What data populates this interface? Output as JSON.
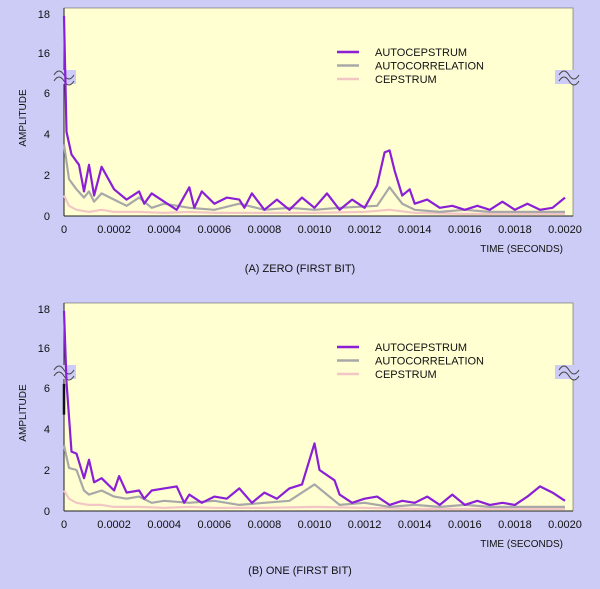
{
  "colors": {
    "background": "#ccccf6",
    "plot_fill": "#ffffd2",
    "autocepstrum": "#8a1fd6",
    "autocorrelation": "#a8a8a8",
    "cepstrum": "#f3c6c6",
    "marker": "#111111"
  },
  "chart_data": [
    {
      "type": "line",
      "caption": "(A) ZERO (FIRST BIT)",
      "xlabel": "TIME (SECONDS)",
      "ylabel": "AMPLITUDE",
      "xlim": [
        0,
        0.002
      ],
      "ylim": [
        0,
        18
      ],
      "broken_axis": true,
      "grid": false,
      "legend_position": "top-right",
      "x_ticks": [
        "0",
        "0.0002",
        "0.0004",
        "0.0006",
        "0.0008",
        "0.0010",
        "0.0012",
        "0.0014",
        "0.0016",
        "0.0018",
        "0.0020"
      ],
      "y_ticks": [
        "0",
        "2",
        "4",
        "6",
        "16",
        "18"
      ],
      "series": [
        {
          "name": "AUTOCEPSTRUM",
          "color_key": "autocepstrum",
          "x": [
            0,
            1e-05,
            3e-05,
            6e-05,
            8e-05,
            0.0001,
            0.00012,
            0.00015,
            0.0002,
            0.00025,
            0.0003,
            0.00032,
            0.00035,
            0.0004,
            0.00045,
            0.0005,
            0.00052,
            0.00055,
            0.0006,
            0.00065,
            0.0007,
            0.00072,
            0.00075,
            0.0008,
            0.00085,
            0.0009,
            0.00095,
            0.001,
            0.00105,
            0.0011,
            0.00115,
            0.0012,
            0.00125,
            0.00128,
            0.0013,
            0.00132,
            0.00135,
            0.00138,
            0.0014,
            0.00145,
            0.0015,
            0.00155,
            0.0016,
            0.00165,
            0.0017,
            0.00175,
            0.0018,
            0.00185,
            0.0019,
            0.00195,
            0.002
          ],
          "y": [
            17.7,
            4.1,
            3.0,
            2.5,
            1.2,
            2.5,
            1.0,
            2.4,
            1.3,
            0.8,
            1.2,
            0.6,
            1.1,
            0.7,
            0.3,
            1.4,
            0.4,
            1.2,
            0.6,
            0.9,
            0.8,
            0.4,
            1.1,
            0.3,
            0.8,
            0.3,
            0.9,
            0.4,
            1.1,
            0.3,
            0.8,
            0.4,
            1.5,
            3.1,
            3.2,
            2.2,
            1.0,
            1.3,
            0.6,
            0.8,
            0.4,
            0.5,
            0.3,
            0.5,
            0.3,
            0.7,
            0.3,
            0.6,
            0.3,
            0.4,
            0.9
          ]
        },
        {
          "name": "AUTOCORRELATION",
          "color_key": "autocorrelation",
          "x": [
            0,
            2e-05,
            5e-05,
            8e-05,
            0.0001,
            0.00012,
            0.00015,
            0.0002,
            0.00025,
            0.0003,
            0.00035,
            0.0004,
            0.0005,
            0.0006,
            0.0007,
            0.0008,
            0.0009,
            0.001,
            0.0011,
            0.00125,
            0.0013,
            0.00135,
            0.0014,
            0.0015,
            0.0016,
            0.0017,
            0.0018,
            0.0019,
            0.002
          ],
          "y": [
            3.5,
            1.8,
            1.3,
            0.9,
            1.2,
            0.7,
            1.1,
            0.8,
            0.5,
            0.9,
            0.4,
            0.6,
            0.4,
            0.3,
            0.6,
            0.3,
            0.4,
            0.3,
            0.4,
            0.5,
            1.4,
            0.6,
            0.3,
            0.2,
            0.3,
            0.2,
            0.2,
            0.2,
            0.2
          ]
        },
        {
          "name": "CEPSTRUM",
          "color_key": "cepstrum",
          "x": [
            0,
            2e-05,
            5e-05,
            0.0001,
            0.00015,
            0.0002,
            0.0003,
            0.0004,
            0.0005,
            0.0006,
            0.0008,
            0.001,
            0.0012,
            0.0013,
            0.0014,
            0.0016,
            0.0018,
            0.002
          ],
          "y": [
            1.0,
            0.5,
            0.3,
            0.2,
            0.3,
            0.2,
            0.2,
            0.15,
            0.2,
            0.15,
            0.15,
            0.15,
            0.2,
            0.3,
            0.15,
            0.1,
            0.1,
            0.1
          ]
        }
      ]
    },
    {
      "type": "line",
      "caption": "(B) ONE (FIRST BIT)",
      "xlabel": "TIME (SECONDS)",
      "ylabel": "AMPLITUDE",
      "xlim": [
        0,
        0.002
      ],
      "ylim": [
        0,
        18
      ],
      "broken_axis": true,
      "grid": false,
      "legend_position": "top-right",
      "x_ticks": [
        "0",
        "0.0002",
        "0.0004",
        "0.0006",
        "0.0008",
        "0.0010",
        "0.0012",
        "0.0014",
        "0.0016",
        "0.0018",
        "0.0020"
      ],
      "y_ticks": [
        "0",
        "2",
        "4",
        "6",
        "16",
        "18"
      ],
      "series": [
        {
          "name": "AUTOCEPSTRUM",
          "color_key": "autocepstrum",
          "x": [
            0,
            1e-05,
            3e-05,
            5e-05,
            8e-05,
            0.0001,
            0.00012,
            0.00015,
            0.0002,
            0.00022,
            0.00025,
            0.0003,
            0.00032,
            0.00035,
            0.0004,
            0.00045,
            0.00048,
            0.0005,
            0.00055,
            0.0006,
            0.00065,
            0.0007,
            0.00075,
            0.0008,
            0.00085,
            0.0009,
            0.00095,
            0.001,
            0.00102,
            0.00108,
            0.0011,
            0.00115,
            0.0012,
            0.00125,
            0.0013,
            0.00135,
            0.0014,
            0.00145,
            0.0015,
            0.00155,
            0.0016,
            0.00165,
            0.0017,
            0.00175,
            0.0018,
            0.00185,
            0.0019,
            0.00195,
            0.002
          ],
          "y": [
            17.7,
            6.3,
            2.9,
            2.8,
            1.6,
            2.5,
            1.4,
            1.6,
            1.0,
            1.7,
            0.9,
            1.0,
            0.6,
            1.0,
            1.1,
            1.2,
            0.4,
            0.8,
            0.4,
            0.7,
            0.6,
            1.1,
            0.4,
            0.9,
            0.6,
            1.1,
            1.3,
            3.3,
            2.0,
            1.5,
            0.8,
            0.4,
            0.6,
            0.7,
            0.3,
            0.5,
            0.4,
            0.7,
            0.3,
            0.8,
            0.3,
            0.5,
            0.3,
            0.4,
            0.3,
            0.7,
            1.2,
            0.9,
            0.5
          ]
        },
        {
          "name": "AUTOCORRELATION",
          "color_key": "autocorrelation",
          "x": [
            0,
            2e-05,
            5e-05,
            8e-05,
            0.0001,
            0.00015,
            0.0002,
            0.00025,
            0.0003,
            0.00035,
            0.0004,
            0.0005,
            0.0006,
            0.0007,
            0.0008,
            0.0009,
            0.00095,
            0.001,
            0.00105,
            0.0011,
            0.0012,
            0.0013,
            0.0014,
            0.0015,
            0.0016,
            0.0017,
            0.0018,
            0.0019,
            0.002
          ],
          "y": [
            3.2,
            2.1,
            2.0,
            1.0,
            0.8,
            1.0,
            0.7,
            0.6,
            0.7,
            0.4,
            0.5,
            0.4,
            0.5,
            0.3,
            0.4,
            0.5,
            0.9,
            1.3,
            0.8,
            0.3,
            0.4,
            0.2,
            0.3,
            0.2,
            0.3,
            0.2,
            0.2,
            0.2,
            0.2
          ]
        },
        {
          "name": "CEPSTRUM",
          "color_key": "cepstrum",
          "x": [
            0,
            2e-05,
            5e-05,
            0.0001,
            0.00015,
            0.0002,
            0.0003,
            0.0004,
            0.0005,
            0.0006,
            0.0008,
            0.001,
            0.0012,
            0.0014,
            0.0016,
            0.0018,
            0.002
          ],
          "y": [
            1.0,
            0.6,
            0.4,
            0.3,
            0.3,
            0.2,
            0.2,
            0.15,
            0.2,
            0.15,
            0.15,
            0.2,
            0.15,
            0.1,
            0.1,
            0.1,
            0.1
          ]
        }
      ]
    }
  ]
}
